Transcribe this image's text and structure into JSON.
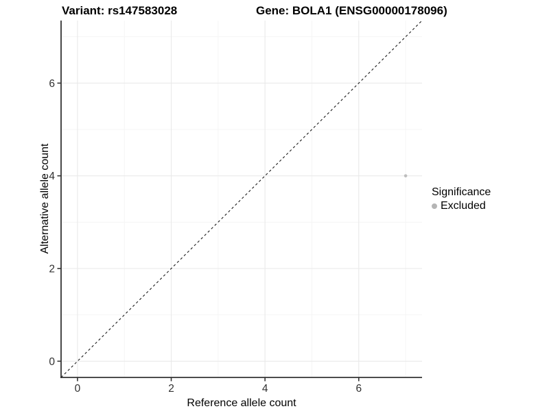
{
  "titles": {
    "variant": "Variant: rs147583028",
    "gene": "Gene: BOLA1 (ENSG00000178096)"
  },
  "chart_data": {
    "type": "scatter",
    "xlabel": "Reference allele count",
    "ylabel": "Alternative allele count",
    "xlim": [
      -0.35,
      7.35
    ],
    "ylim": [
      -0.35,
      7.35
    ],
    "x_major_ticks": [
      0,
      2,
      4,
      6
    ],
    "y_major_ticks": [
      0,
      2,
      4,
      6
    ],
    "x_minor_ticks": [
      1,
      3,
      5,
      7
    ],
    "y_minor_ticks": [
      1,
      3,
      5,
      7
    ],
    "grid": true,
    "reference_line": {
      "type": "identity",
      "style": "dashed",
      "from": -0.35,
      "to": 7.35
    },
    "points": [
      {
        "x": 7,
        "y": 4,
        "series": "Excluded"
      }
    ],
    "legend": {
      "title": "Significance",
      "position": "right",
      "entries": [
        {
          "label": "Excluded",
          "color": "#b5b5b5"
        }
      ]
    }
  },
  "colors": {
    "background": "#ffffff",
    "point": "#bdbdbd",
    "axis_line": "#333333",
    "tick_label": "#303030",
    "grid_major": "#e9e9e9",
    "grid_minor": "#f4f4f4",
    "dashed_line": "#1a1a1a"
  }
}
